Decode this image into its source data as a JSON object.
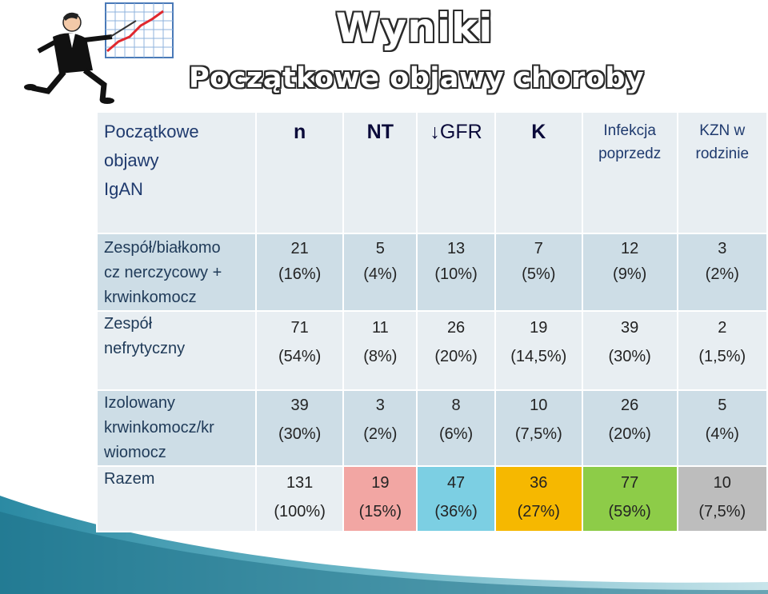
{
  "title": "Wyniki",
  "subtitle": "Początkowe objawy choroby",
  "table": {
    "header": {
      "label_lines": [
        "Początkowe",
        "objawy",
        "IgAN"
      ],
      "n": "n",
      "nt": "NT",
      "gfr_arrow": "↓",
      "gfr": "GFR",
      "k": "K",
      "infekcja_lines": [
        "Infekcja",
        "poprzedz"
      ],
      "kzn_lines": [
        "KZN w",
        "rodzinie"
      ]
    },
    "rows": [
      {
        "label_lines": [
          "Zespół/białkomo",
          "cz nerczycowy +",
          "krwinkomocz"
        ],
        "cells": [
          [
            "21",
            "(16%)"
          ],
          [
            "5",
            "(4%)"
          ],
          [
            "13",
            "(10%)"
          ],
          [
            "7",
            "(5%)"
          ],
          [
            "12",
            "(9%)"
          ],
          [
            "3",
            "(2%)"
          ]
        ]
      },
      {
        "label_lines": [
          "Zespół",
          "nefrytyczny"
        ],
        "cells": [
          [
            "71",
            "(54%)"
          ],
          [
            "11",
            "(8%)"
          ],
          [
            "26",
            "(20%)"
          ],
          [
            "19",
            "(14,5%)"
          ],
          [
            "39",
            "(30%)"
          ],
          [
            "2",
            "(1,5%)"
          ]
        ]
      },
      {
        "label_lines": [
          "Izolowany",
          "krwinkomocz/kr",
          "wiomocz"
        ],
        "cells": [
          [
            "39",
            "(30%)"
          ],
          [
            "3",
            "(2%)"
          ],
          [
            "8",
            "(6%)"
          ],
          [
            "10",
            "(7,5%)"
          ],
          [
            "26",
            "(20%)"
          ],
          [
            "5",
            "(4%)"
          ]
        ]
      },
      {
        "label_lines": [
          "Razem"
        ],
        "cells": [
          [
            "131",
            "(100%)"
          ],
          [
            "19",
            "(15%)"
          ],
          [
            "47",
            "(36%)"
          ],
          [
            "36",
            "(27%)"
          ],
          [
            "77",
            "(59%)"
          ],
          [
            "10",
            "(7,5%)"
          ]
        ]
      }
    ]
  },
  "colors": {
    "header_bg": "#e8eef2",
    "row_alt_bg": "#cddde6",
    "highlight_nt": "#f2a6a3",
    "highlight_gfr": "#7ccfe3",
    "highlight_k": "#f6b800",
    "highlight_infekcja": "#8dcc48",
    "highlight_kzn": "#bdbdbd"
  }
}
